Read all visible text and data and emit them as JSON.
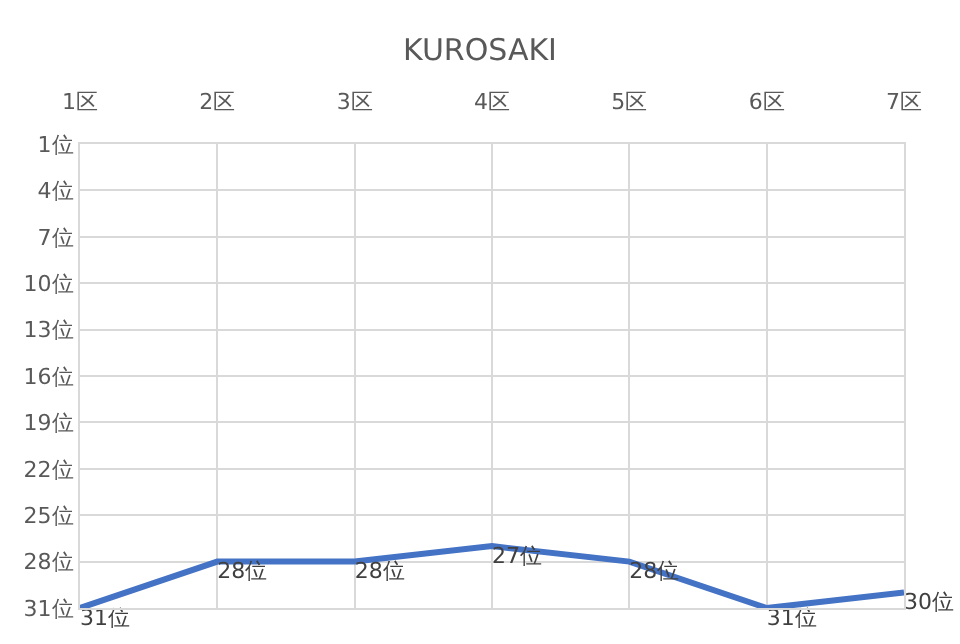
{
  "chart_data": {
    "type": "line",
    "title": "KUROSAKI",
    "categories": [
      "1区",
      "2区",
      "3区",
      "4区",
      "5区",
      "6区",
      "7区"
    ],
    "series": [
      {
        "color": "#4472c4",
        "values": [
          31,
          28,
          28,
          27,
          28,
          31,
          30
        ],
        "value_labels": [
          "31位",
          "28位",
          "28位",
          "27位",
          "28位",
          "31位",
          "30位"
        ]
      }
    ],
    "ylim": [
      31,
      1
    ],
    "yticks": [
      {
        "value": 1,
        "label": "1位"
      },
      {
        "value": 4,
        "label": "4位"
      },
      {
        "value": 7,
        "label": "7位"
      },
      {
        "value": 10,
        "label": "10位"
      },
      {
        "value": 13,
        "label": "13位"
      },
      {
        "value": 16,
        "label": "16位"
      },
      {
        "value": 19,
        "label": "19位"
      },
      {
        "value": 22,
        "label": "22位"
      },
      {
        "value": 25,
        "label": "25位"
      },
      {
        "value": 28,
        "label": "28位"
      },
      {
        "value": 31,
        "label": "31位"
      }
    ],
    "grid": true,
    "marker": "none",
    "line_style": "solid"
  }
}
